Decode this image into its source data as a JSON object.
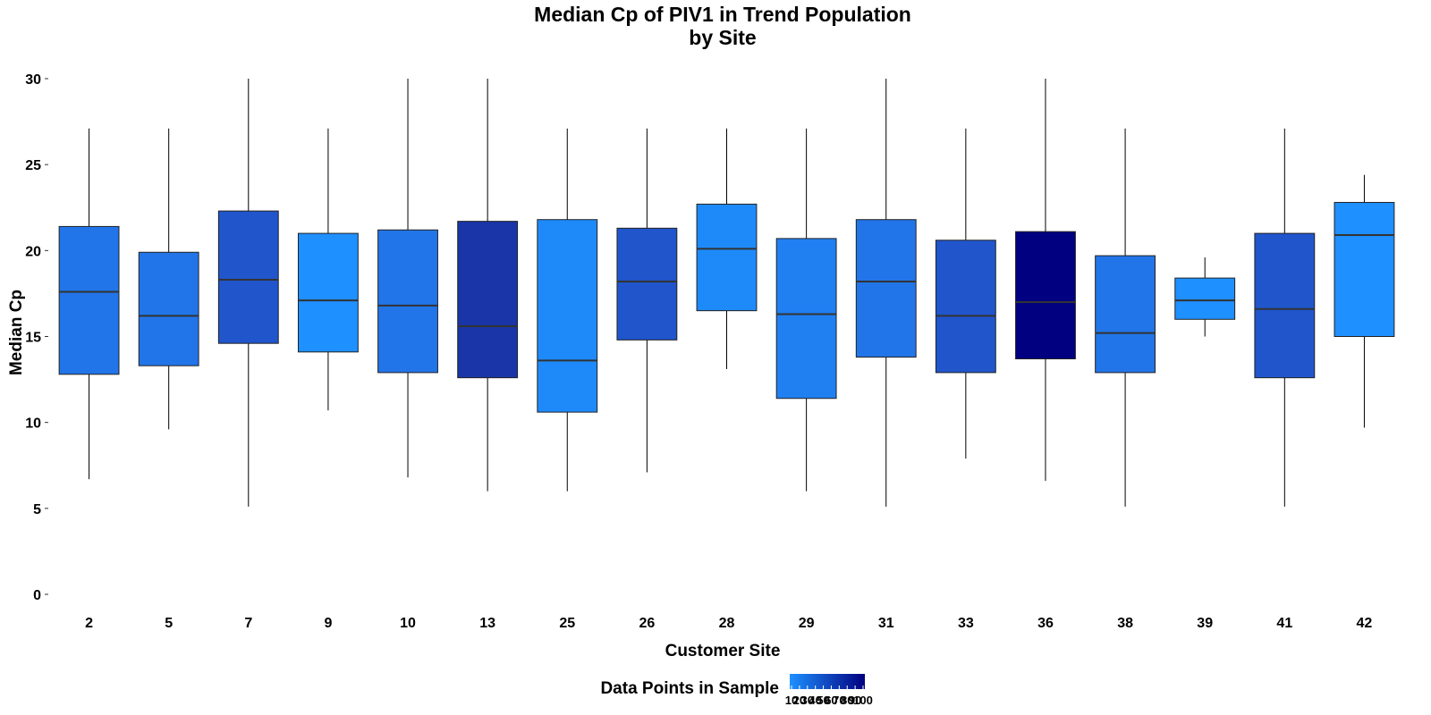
{
  "chart_data": {
    "type": "boxplot",
    "title": [
      "Median Cp of PIV1 in Trend Population",
      "by Site"
    ],
    "xlabel": "Customer Site",
    "ylabel": "Median Cp",
    "ylim": [
      -1,
      30.5
    ],
    "yticks": [
      0,
      5,
      10,
      15,
      20,
      25,
      30
    ],
    "grid": false,
    "legend": {
      "title": "Data Points in Sample",
      "placement": "bottom",
      "tick_labels": [
        "10",
        "20",
        "30",
        "40",
        "50",
        "60",
        "70",
        "80",
        "90",
        "100"
      ],
      "color_low": "#1E90FF",
      "color_high": "#000080"
    },
    "categories": [
      "2",
      "5",
      "7",
      "9",
      "10",
      "13",
      "25",
      "26",
      "28",
      "29",
      "31",
      "33",
      "36",
      "38",
      "39",
      "41",
      "42"
    ],
    "boxes": [
      {
        "site": "2",
        "whisker_low": 6.7,
        "q1": 12.8,
        "median": 17.6,
        "q3": 21.4,
        "whisker_high": 27.1,
        "fill": "#2275E8"
      },
      {
        "site": "5",
        "whisker_low": 9.6,
        "q1": 13.3,
        "median": 16.2,
        "q3": 19.9,
        "whisker_high": 27.1,
        "fill": "#2275E8"
      },
      {
        "site": "7",
        "whisker_low": 5.1,
        "q1": 14.6,
        "median": 18.3,
        "q3": 22.3,
        "whisker_high": 30.0,
        "fill": "#2055CC"
      },
      {
        "site": "9",
        "whisker_low": 10.7,
        "q1": 14.1,
        "median": 17.1,
        "q3": 21.0,
        "whisker_high": 27.1,
        "fill": "#1E90FF"
      },
      {
        "site": "10",
        "whisker_low": 6.8,
        "q1": 12.9,
        "median": 16.8,
        "q3": 21.2,
        "whisker_high": 30.0,
        "fill": "#2275E8"
      },
      {
        "site": "13",
        "whisker_low": 6.0,
        "q1": 12.6,
        "median": 15.6,
        "q3": 21.7,
        "whisker_high": 30.0,
        "fill": "#1A35A8"
      },
      {
        "site": "25",
        "whisker_low": 6.0,
        "q1": 10.6,
        "median": 13.6,
        "q3": 21.8,
        "whisker_high": 27.1,
        "fill": "#1E8AFA"
      },
      {
        "site": "26",
        "whisker_low": 7.1,
        "q1": 14.8,
        "median": 18.2,
        "q3": 21.3,
        "whisker_high": 27.1,
        "fill": "#2055CC"
      },
      {
        "site": "28",
        "whisker_low": 13.1,
        "q1": 16.5,
        "median": 20.1,
        "q3": 22.7,
        "whisker_high": 27.1,
        "fill": "#1E8AFA"
      },
      {
        "site": "29",
        "whisker_low": 6.0,
        "q1": 11.4,
        "median": 16.3,
        "q3": 20.7,
        "whisker_high": 27.1,
        "fill": "#2080F2"
      },
      {
        "site": "31",
        "whisker_low": 5.1,
        "q1": 13.8,
        "median": 18.2,
        "q3": 21.8,
        "whisker_high": 30.0,
        "fill": "#2275E8"
      },
      {
        "site": "33",
        "whisker_low": 7.9,
        "q1": 12.9,
        "median": 16.2,
        "q3": 20.6,
        "whisker_high": 27.1,
        "fill": "#2055CC"
      },
      {
        "site": "36",
        "whisker_low": 6.6,
        "q1": 13.7,
        "median": 17.0,
        "q3": 21.1,
        "whisker_high": 30.0,
        "fill": "#000080"
      },
      {
        "site": "38",
        "whisker_low": 5.1,
        "q1": 12.9,
        "median": 15.2,
        "q3": 19.7,
        "whisker_high": 27.1,
        "fill": "#2275E8"
      },
      {
        "site": "39",
        "whisker_low": 15.0,
        "q1": 16.0,
        "median": 17.1,
        "q3": 18.4,
        "whisker_high": 19.6,
        "fill": "#1E90FF"
      },
      {
        "site": "41",
        "whisker_low": 5.1,
        "q1": 12.6,
        "median": 16.6,
        "q3": 21.0,
        "whisker_high": 27.1,
        "fill": "#2055CC"
      },
      {
        "site": "42",
        "whisker_low": 9.7,
        "q1": 15.0,
        "median": 20.9,
        "q3": 22.8,
        "whisker_high": 24.4,
        "fill": "#1E90FF"
      }
    ]
  }
}
